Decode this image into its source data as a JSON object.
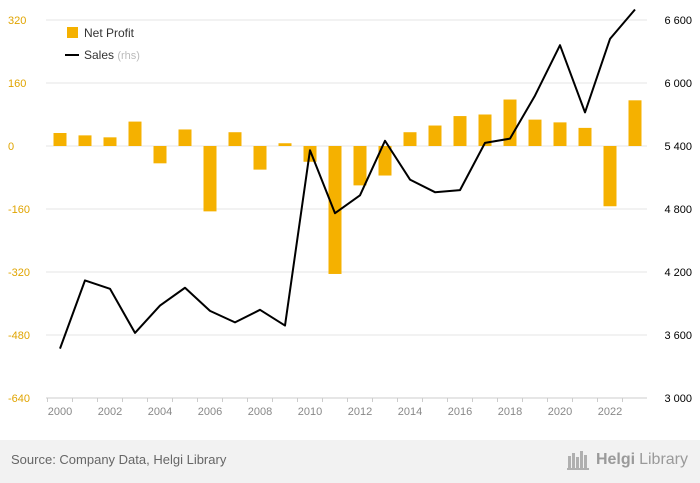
{
  "chart_data": {
    "type": "bar+line",
    "categories": [
      "2000",
      "2001",
      "2002",
      "2003",
      "2004",
      "2005",
      "2006",
      "2007",
      "2008",
      "2009",
      "2010",
      "2011",
      "2012",
      "2013",
      "2014",
      "2015",
      "2016",
      "2017",
      "2018",
      "2019",
      "2020",
      "2021",
      "2022",
      "2023"
    ],
    "x_tick_labels": [
      "2000",
      "2002",
      "2004",
      "2006",
      "2008",
      "2010",
      "2012",
      "2014",
      "2016",
      "2018",
      "2020",
      "2022"
    ],
    "series": [
      {
        "name": "Net Profit",
        "axis": "left",
        "kind": "bar",
        "color": "#f5b100",
        "values": [
          33,
          27,
          22,
          62,
          -44,
          42,
          -166,
          35,
          -60,
          7,
          -40,
          -325,
          -100,
          -75,
          35,
          52,
          76,
          80,
          118,
          67,
          60,
          46,
          -153,
          116
        ]
      },
      {
        "name": "Sales",
        "name_suffix": "(rhs)",
        "axis": "right",
        "kind": "line",
        "color": "#000000",
        "values": [
          3470,
          4120,
          4040,
          3620,
          3880,
          4050,
          3830,
          3720,
          3840,
          3690,
          5360,
          4760,
          4930,
          5450,
          5080,
          4960,
          4980,
          5430,
          5470,
          5880,
          6360,
          5720,
          6420,
          6700
        ]
      }
    ],
    "ylim_left": [
      -640,
      320
    ],
    "yticks_left": [
      320,
      160,
      0,
      -160,
      -320,
      -480,
      -640
    ],
    "ylim_right": [
      3000,
      6600
    ],
    "yticks_right": [
      "6 600",
      "5 400",
      "4 800",
      "4 200",
      "3 600",
      "3 000"
    ],
    "yticks_right_values": [
      6600,
      5400,
      4800,
      4200,
      3600,
      3000
    ],
    "yticks_right_extra": [
      {
        "label": "6 000",
        "value": 6000
      }
    ],
    "legend_position": "top-left",
    "grid": true
  },
  "colors": {
    "bar": "#f5b100",
    "line": "#000000",
    "left_axis_text": "#e0a400",
    "right_axis_text": "#000000",
    "grid": "#e6e6e6"
  },
  "footer": {
    "source": "Source: Company Data, Helgi Library",
    "brand_bold": "Helgi",
    "brand_light": "Library"
  }
}
